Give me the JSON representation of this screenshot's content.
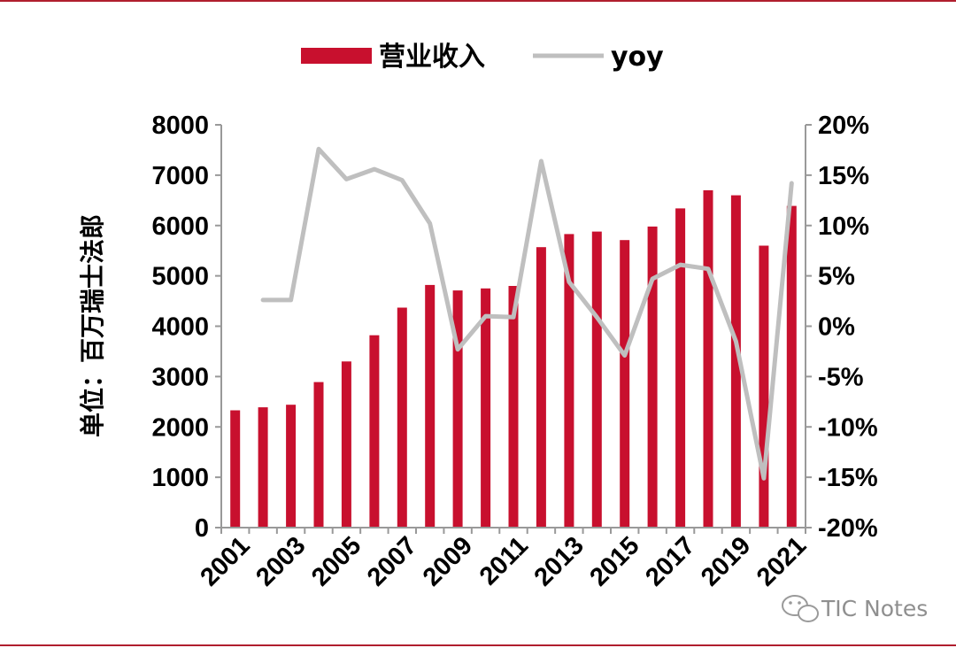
{
  "chart_data": {
    "type": "bar",
    "categories": [
      "2001",
      "2002",
      "2003",
      "2004",
      "2005",
      "2006",
      "2007",
      "2008",
      "2009",
      "2010",
      "2011",
      "2012",
      "2013",
      "2014",
      "2015",
      "2016",
      "2017",
      "2018",
      "2019",
      "2020",
      "2021"
    ],
    "x_tick_labels": [
      "2001",
      "2003",
      "2005",
      "2007",
      "2009",
      "2011",
      "2013",
      "2015",
      "2017",
      "2019",
      "2021"
    ],
    "series": [
      {
        "name": "营业收入",
        "type": "bar",
        "axis": "left",
        "color": "#c8102e",
        "values": [
          2330,
          2390,
          2440,
          2890,
          3300,
          3820,
          4370,
          4820,
          4710,
          4750,
          4800,
          5570,
          5830,
          5880,
          5710,
          5980,
          6340,
          6700,
          6600,
          5600,
          6390
        ]
      },
      {
        "name": "yoy",
        "type": "line",
        "axis": "right",
        "color": "#bfbfbf",
        "values": [
          null,
          2.6,
          2.6,
          17.6,
          14.6,
          15.6,
          14.5,
          10.2,
          -2.3,
          1.0,
          0.9,
          16.4,
          4.4,
          0.9,
          -2.9,
          4.7,
          6.1,
          5.7,
          -1.5,
          -15.1,
          14.2
        ]
      }
    ],
    "y_left": {
      "label": "单位：百万瑞士法郎",
      "ylim": [
        0,
        8000
      ],
      "ticks": [
        "0",
        "1000",
        "2000",
        "3000",
        "4000",
        "5000",
        "6000",
        "7000",
        "8000"
      ]
    },
    "y_right": {
      "ylim": [
        -20,
        20
      ],
      "ticks": [
        "-20%",
        "-15%",
        "-10%",
        "-5%",
        "0%",
        "5%",
        "10%",
        "15%",
        "20%"
      ]
    },
    "legend": {
      "position": "top-center",
      "entries": [
        "营业收入",
        "yoy"
      ]
    },
    "grid": false
  },
  "watermark": {
    "text": "TIC Notes",
    "icon": "wechat-icon"
  },
  "colors": {
    "accent": "#c8102e",
    "rule": "#b01e2e",
    "line": "#bfbfbf",
    "axis": "#999999"
  }
}
